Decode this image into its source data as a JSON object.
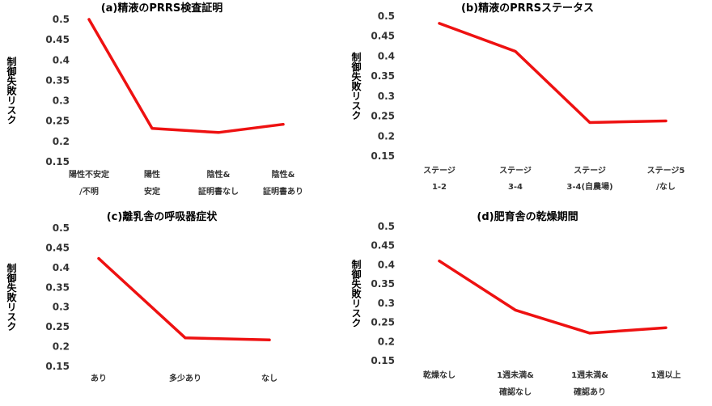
{
  "chart_data": [
    {
      "type": "line",
      "title": "(a)精液のPRRS検査証明",
      "ylabel": "制御失敗リスク",
      "ylim": [
        0.15,
        0.5
      ],
      "yticks": [
        "0.5",
        "0.45",
        "0.4",
        "0.35",
        "0.3",
        "0.25",
        "0.2",
        "0.15"
      ],
      "categories": [
        [
          "陽性不安定",
          "/不明"
        ],
        [
          "陽性",
          "安定"
        ],
        [
          "陰性&",
          "証明書なし"
        ],
        [
          "陰性&",
          "証明書あり"
        ]
      ],
      "values": [
        0.5,
        0.232,
        0.222,
        0.242
      ]
    },
    {
      "type": "line",
      "title": "(b)精液のPRRSステータス",
      "ylabel": "制御失敗リスク",
      "ylim": [
        0.15,
        0.5
      ],
      "yticks": [
        "0.5",
        "0.45",
        "0.4",
        "0.35",
        "0.3",
        "0.25",
        "0.2",
        "0.15"
      ],
      "categories": [
        [
          "ステージ",
          "1-2"
        ],
        [
          "ステージ",
          "3-4"
        ],
        [
          "ステージ",
          "3-4(自農場)"
        ],
        [
          "ステージ5",
          "/なし"
        ]
      ],
      "values": [
        0.482,
        0.412,
        0.234,
        0.238
      ]
    },
    {
      "type": "line",
      "title": "(c)離乳舎の呼吸器症状",
      "ylabel": "制御失敗リスク",
      "ylim": [
        0.15,
        0.5
      ],
      "yticks": [
        "0.5",
        "0.45",
        "0.4",
        "0.35",
        "0.3",
        "0.25",
        "0.2",
        "0.15"
      ],
      "categories": [
        [
          "あり"
        ],
        [
          "多少あり"
        ],
        [
          "なし"
        ]
      ],
      "values": [
        0.423,
        0.222,
        0.217
      ]
    },
    {
      "type": "line",
      "title": "(d)肥育舎の乾燥期間",
      "ylabel": "制御失敗リスク",
      "ylim": [
        0.15,
        0.5
      ],
      "yticks": [
        "0.5",
        "0.45",
        "0.4",
        "0.35",
        "0.3",
        "0.25",
        "0.2",
        "0.15"
      ],
      "categories": [
        [
          "乾燥なし"
        ],
        [
          "1週未満&",
          "確認なし"
        ],
        [
          "1週未満&",
          "確認あり"
        ],
        [
          "1週以上"
        ]
      ],
      "values": [
        0.41,
        0.282,
        0.222,
        0.236
      ]
    }
  ],
  "colors": {
    "line": "#ee1111",
    "text": "#333333"
  }
}
